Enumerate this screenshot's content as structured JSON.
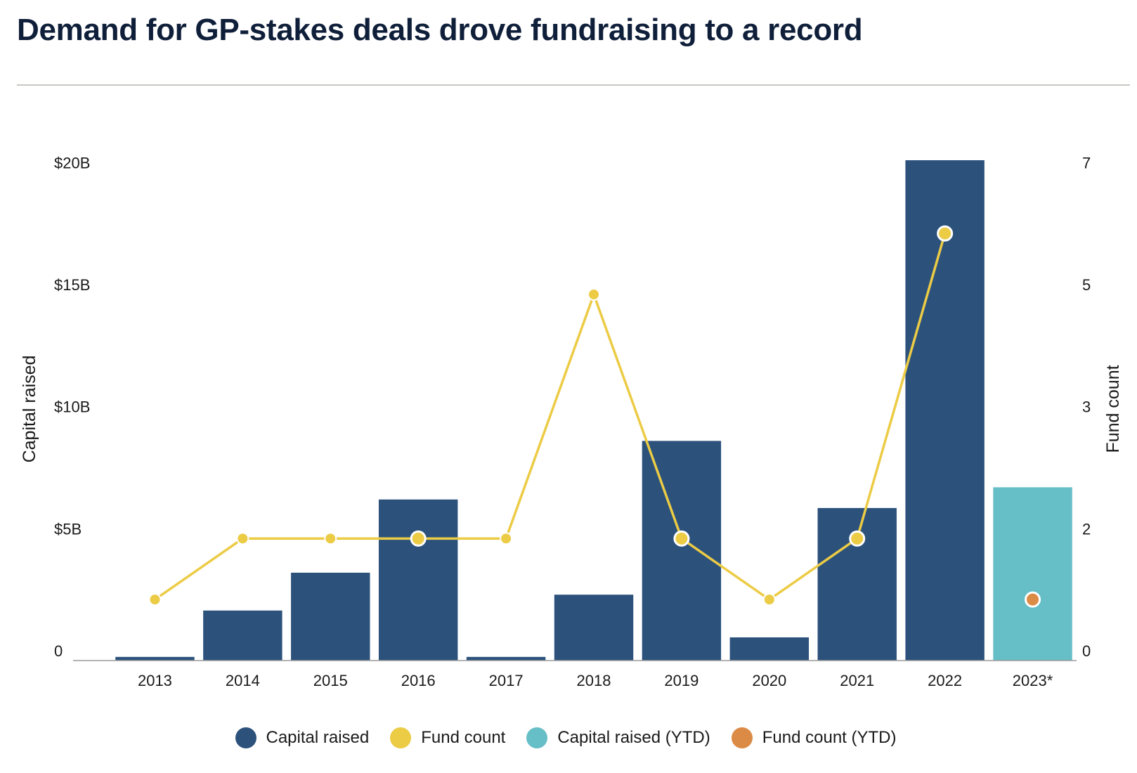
{
  "title": "Demand for GP-stakes deals drove fundraising to a record",
  "colors": {
    "capital": "#2c527c",
    "count": "#eccb45",
    "capital_ytd": "#66bec6",
    "count_ytd": "#dc8b46",
    "axis": "#9a9a9a",
    "rule": "#c7c7c2",
    "title": "#0f1f3a"
  },
  "legend": [
    {
      "label": "Capital raised",
      "color": "#2c527c"
    },
    {
      "label": "Fund count",
      "color": "#eccb45"
    },
    {
      "label": "Capital raised (YTD)",
      "color": "#66bec6"
    },
    {
      "label": "Fund count (YTD)",
      "color": "#dc8b46"
    }
  ],
  "chart_data": {
    "type": "bar",
    "categories": [
      "2013",
      "2014",
      "2015",
      "2016",
      "2017",
      "2018",
      "2019",
      "2020",
      "2021",
      "2022",
      "2023*"
    ],
    "series": [
      {
        "name": "Capital raised",
        "type": "bar",
        "axis": "left",
        "values": [
          0.15,
          2.05,
          3.6,
          6.6,
          0.15,
          2.7,
          9.0,
          0.95,
          6.25,
          20.5,
          null
        ]
      },
      {
        "name": "Capital raised (YTD)",
        "type": "bar",
        "axis": "left",
        "values": [
          null,
          null,
          null,
          null,
          null,
          null,
          null,
          null,
          null,
          null,
          7.1
        ]
      },
      {
        "name": "Fund count",
        "type": "line",
        "axis": "right",
        "values": [
          1,
          2,
          2,
          2,
          2,
          5,
          2,
          1,
          2,
          6,
          null
        ]
      },
      {
        "name": "Fund count (YTD)",
        "type": "scatter",
        "axis": "right",
        "values": [
          null,
          null,
          null,
          null,
          null,
          null,
          null,
          null,
          null,
          null,
          1
        ]
      }
    ],
    "highlighted_count_points": [
      "2016",
      "2019",
      "2021",
      "2022"
    ],
    "y_left": {
      "label": "Capital raised",
      "ticks": [
        "0",
        "$5B",
        "$10B",
        "$15B",
        "$20B"
      ],
      "tick_values": [
        0,
        5,
        10,
        15,
        20
      ],
      "range": [
        0,
        20.5
      ]
    },
    "y_right": {
      "label": "Fund count",
      "ticks": [
        "0",
        "2",
        "3",
        "5",
        "7"
      ],
      "range": [
        0,
        7
      ]
    },
    "grid": false,
    "legend_position": "bottom-center"
  }
}
